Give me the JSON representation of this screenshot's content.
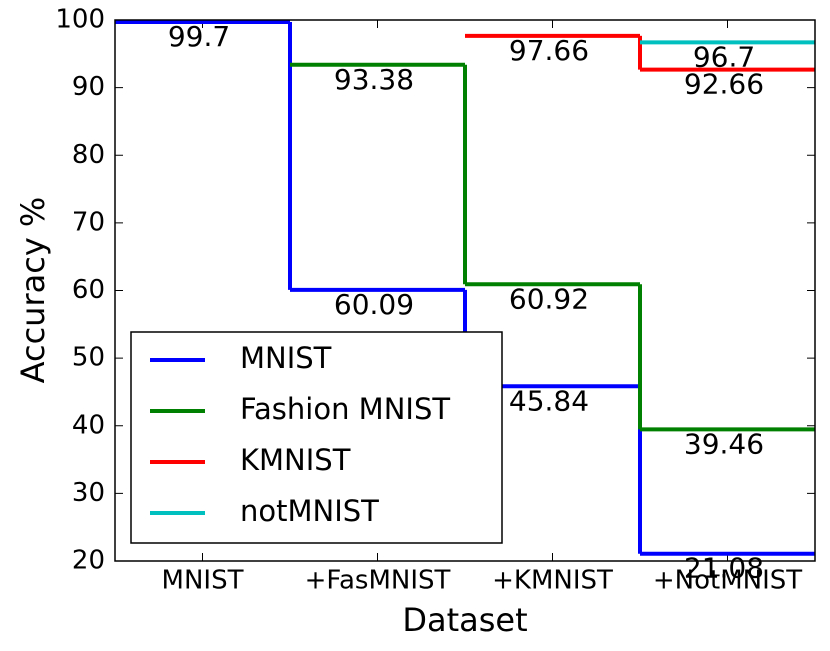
{
  "chart_data": {
    "type": "step",
    "x_label": "Dataset",
    "y_label": "Accuracy %",
    "categories": [
      "MNIST",
      "+FasMNIST",
      "+KMNIST",
      "+NotMNIST"
    ],
    "series": [
      {
        "name": "MNIST",
        "color": "#0000ff",
        "values": [
          99.7,
          60.09,
          45.84,
          21.08
        ]
      },
      {
        "name": "Fashion MNIST",
        "color": "#008000",
        "values": [
          null,
          93.38,
          60.92,
          39.46
        ]
      },
      {
        "name": "KMNIST",
        "color": "#ff0000",
        "values": [
          null,
          null,
          97.66,
          92.66
        ]
      },
      {
        "name": "notMNIST",
        "color": "#00bfbf",
        "values": [
          null,
          null,
          null,
          96.7
        ]
      }
    ],
    "ylim": [
      20,
      100
    ],
    "yticks": [
      20,
      30,
      40,
      50,
      60,
      70,
      80,
      90,
      100
    ],
    "legend": "lower left"
  }
}
